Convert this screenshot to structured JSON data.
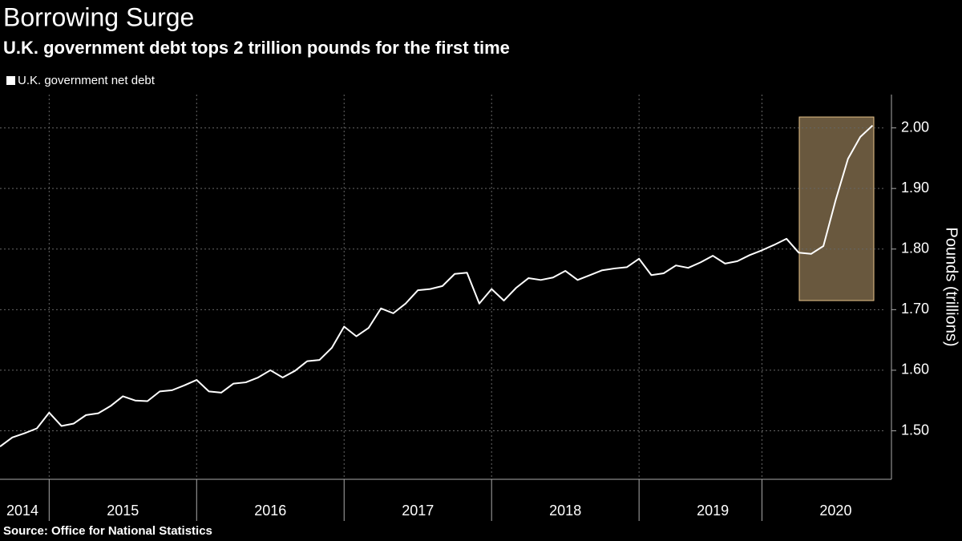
{
  "chart_data": {
    "type": "line",
    "title": "Borrowing Surge",
    "subtitle": "U.K. government debt tops 2 trillion pounds for the first time",
    "source": "Source:  Office for National Statistics",
    "y_label": "Pounds (trillions)",
    "categories": [
      null,
      null,
      "2014",
      null,
      null,
      null,
      null,
      null,
      null,
      null,
      "2015",
      null,
      null,
      null,
      null,
      null,
      null,
      null,
      null,
      null,
      null,
      null,
      "2016",
      null,
      null,
      null,
      null,
      null,
      null,
      null,
      null,
      null,
      null,
      null,
      "2017",
      null,
      null,
      null,
      null,
      null,
      null,
      null,
      null,
      null,
      null,
      null,
      "2018",
      null,
      null,
      null,
      null,
      null,
      null,
      null,
      null,
      null,
      null,
      null,
      "2019",
      null,
      null,
      null,
      null,
      null,
      null,
      null,
      null,
      null,
      "2020",
      null,
      null,
      null
    ],
    "series": [
      {
        "name": "U.K. government net debt",
        "color": "#ffffff",
        "values": [
          1.474,
          1.489,
          1.496,
          1.504,
          1.53,
          1.508,
          1.512,
          1.526,
          1.529,
          1.541,
          1.557,
          1.55,
          1.549,
          1.565,
          1.567,
          1.575,
          1.584,
          1.565,
          1.563,
          1.578,
          1.58,
          1.588,
          1.6,
          1.588,
          1.599,
          1.615,
          1.617,
          1.637,
          1.672,
          1.656,
          1.67,
          1.702,
          1.694,
          1.71,
          1.732,
          1.734,
          1.739,
          1.759,
          1.761,
          1.71,
          1.734,
          1.715,
          1.736,
          1.752,
          1.749,
          1.753,
          1.764,
          1.749,
          1.757,
          1.765,
          1.768,
          1.77,
          1.784,
          1.757,
          1.76,
          1.773,
          1.769,
          1.778,
          1.789,
          1.776,
          1.78,
          1.79,
          1.798,
          1.807,
          1.817,
          1.794,
          1.792,
          1.805,
          1.881,
          1.949,
          1.985,
          2.004
        ]
      }
    ],
    "ylim": [
      1.42,
      2.055
    ],
    "yticks": [
      {
        "value": 1.5,
        "label": "1.50"
      },
      {
        "value": 1.6,
        "label": "1.60"
      },
      {
        "value": 1.7,
        "label": "1.70"
      },
      {
        "value": 1.8,
        "label": "1.80"
      },
      {
        "value": 1.9,
        "label": "1.90"
      },
      {
        "value": 2.0,
        "label": "2.00"
      }
    ],
    "grid": true,
    "highlight_color": "#e8c38a"
  }
}
